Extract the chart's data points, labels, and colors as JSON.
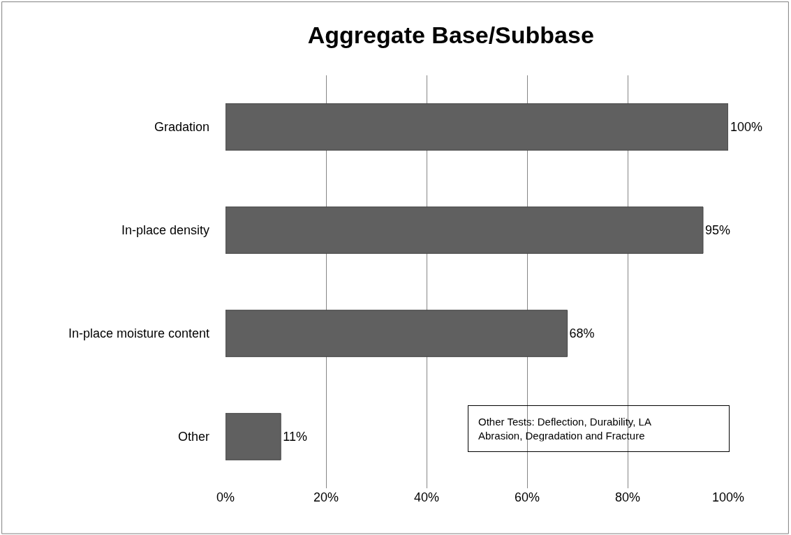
{
  "chart_data": {
    "type": "bar",
    "orientation": "horizontal",
    "title": "Aggregate Base/Subbase",
    "categories": [
      "Gradation",
      "In-place density",
      "In-place moisture content",
      "Other"
    ],
    "values": [
      100,
      95,
      68,
      11
    ],
    "value_labels": [
      "100%",
      "95%",
      "68%",
      "11%"
    ],
    "color": "#606060",
    "xlim": [
      0,
      100
    ],
    "xticks": [
      {
        "value": 0,
        "label": "0%"
      },
      {
        "value": 20,
        "label": "20%"
      },
      {
        "value": 40,
        "label": "40%"
      },
      {
        "value": 60,
        "label": "60%"
      },
      {
        "value": 80,
        "label": "80%"
      },
      {
        "value": 100,
        "label": "100%"
      }
    ],
    "grid": "x",
    "annotations": [
      "Other Tests: Deflection, Durability, LA Abrasion, Degradation and Fracture"
    ]
  }
}
